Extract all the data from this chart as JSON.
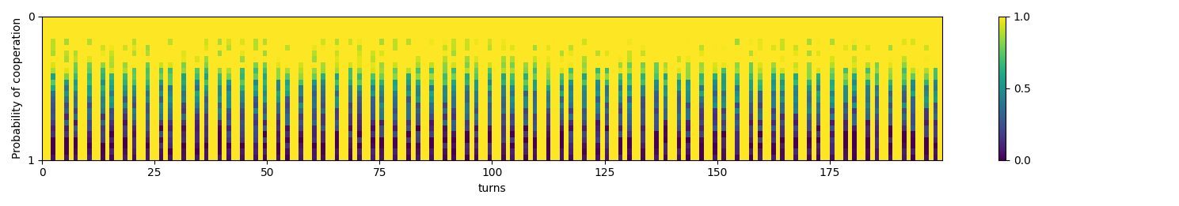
{
  "n_turns": 200,
  "n_rows": 25,
  "xlabel": "turns",
  "ylabel": "Probability of cooperation",
  "ytick_top": "0",
  "ytick_bottom": "1",
  "colormap": "viridis",
  "vmin": 0.0,
  "vmax": 1.0,
  "colorbar_ticks": [
    0.0,
    0.5,
    1.0
  ],
  "colorbar_labels": [
    "0.0",
    "0.5",
    "1.0"
  ],
  "xticks": [
    0,
    25,
    50,
    75,
    100,
    125,
    150,
    175
  ],
  "figsize": [
    14.89,
    2.61
  ],
  "dpi": 100,
  "seed": 42
}
